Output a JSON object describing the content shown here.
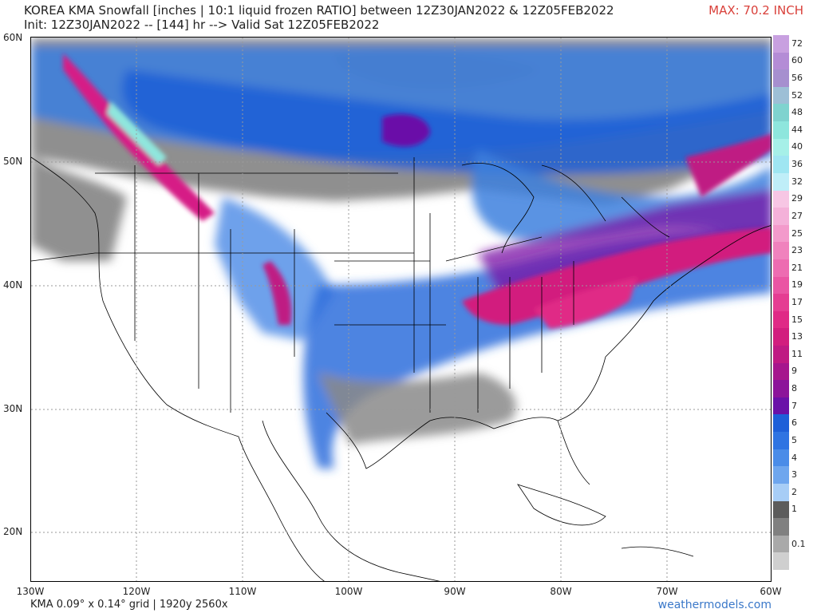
{
  "header": {
    "title": "KOREA KMA Snowfall [inches | 10:1 liquid frozen RATIO] between 12Z30JAN2022 & 12Z05FEB2022",
    "subtitle": "Init: 12Z30JAN2022 -- [144] hr --> Valid Sat 12Z05FEB2022",
    "max": "MAX: 70.2 INCH"
  },
  "map": {
    "lat_labels": [
      "60N",
      "50N",
      "40N",
      "30N",
      "20N"
    ],
    "lon_labels": [
      "130W",
      "120W",
      "110W",
      "100W",
      "90W",
      "80W",
      "70W",
      "60W"
    ],
    "colors": {
      "land": "#ffffff",
      "ocean": "#ffffff",
      "border": "#000000",
      "gridline": "#9a9a9a"
    }
  },
  "colorbar": {
    "levels": [
      {
        "label": "72",
        "color": "#c8a0e0"
      },
      {
        "label": "60",
        "color": "#b48cd6"
      },
      {
        "label": "56",
        "color": "#a68fcf"
      },
      {
        "label": "52",
        "color": "#9dbfd6"
      },
      {
        "label": "48",
        "color": "#7fd3cf"
      },
      {
        "label": "44",
        "color": "#8ee6dd"
      },
      {
        "label": "40",
        "color": "#a6f0e8"
      },
      {
        "label": "36",
        "color": "#9fe6f2"
      },
      {
        "label": "32",
        "color": "#bfeef8"
      },
      {
        "label": "29",
        "color": "#f7c6e4"
      },
      {
        "label": "27",
        "color": "#f4b1d9"
      },
      {
        "label": "25",
        "color": "#f39acb"
      },
      {
        "label": "23",
        "color": "#f082bd"
      },
      {
        "label": "21",
        "color": "#ed6cb1"
      },
      {
        "label": "19",
        "color": "#ea55a3"
      },
      {
        "label": "17",
        "color": "#e53d92"
      },
      {
        "label": "15",
        "color": "#e02a86"
      },
      {
        "label": "13",
        "color": "#d21e7e"
      },
      {
        "label": "11",
        "color": "#bf1a83"
      },
      {
        "label": "9",
        "color": "#a6168d"
      },
      {
        "label": "8",
        "color": "#8c149a"
      },
      {
        "label": "7",
        "color": "#6a11a8"
      },
      {
        "label": "6",
        "color": "#1e5fd8"
      },
      {
        "label": "5",
        "color": "#2f74e2"
      },
      {
        "label": "4",
        "color": "#4a8ce8"
      },
      {
        "label": "3",
        "color": "#6ea6ee"
      },
      {
        "label": "2",
        "color": "#a7cdf6"
      },
      {
        "label": "1",
        "color": "#5c5c5c"
      },
      {
        "label": "",
        "color": "#808080"
      },
      {
        "label": "0.1",
        "color": "#a9a9a9"
      },
      {
        "label": "",
        "color": "#cfcfcf"
      }
    ]
  },
  "footer": {
    "grid_info": "KMA 0.09° x 0.14° grid | 1920y 2560x",
    "brand": "weathermodels.com"
  }
}
